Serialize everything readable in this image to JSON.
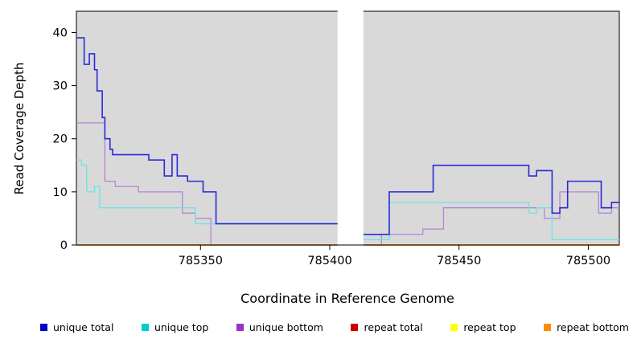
{
  "chart_data": {
    "type": "line",
    "title": "",
    "xlabel": "Coordinate in Reference Genome",
    "ylabel": "Read Coverage Depth",
    "xlim": [
      785302,
      785512
    ],
    "ylim": [
      0,
      44
    ],
    "x_ticks": [
      785350,
      785400,
      785450,
      785500
    ],
    "y_ticks": [
      0,
      10,
      20,
      30,
      40
    ],
    "grid": false,
    "legend_position": "bottom",
    "plot_bg": "#d9d9d9",
    "gap_region": [
      785403,
      785413
    ],
    "series": [
      {
        "name": "repeat total",
        "color": "#cd0000",
        "width": 1.2,
        "step": true,
        "segments": [
          [
            [
              785302,
              0
            ],
            [
              785403,
              0
            ]
          ],
          [
            [
              785413,
              0
            ],
            [
              785512,
              0
            ]
          ]
        ]
      },
      {
        "name": "repeat top",
        "color": "#ffff00",
        "width": 1.2,
        "step": true,
        "segments": [
          [
            [
              785302,
              0
            ],
            [
              785403,
              0
            ]
          ],
          [
            [
              785413,
              0
            ],
            [
              785512,
              0
            ]
          ]
        ]
      },
      {
        "name": "repeat bottom",
        "color": "#ff8c00",
        "width": 1.4,
        "step": true,
        "segments": [
          [
            [
              785302,
              0
            ],
            [
              785403,
              0
            ]
          ],
          [
            [
              785413,
              0
            ],
            [
              785512,
              0
            ]
          ]
        ]
      },
      {
        "name": "unique bottom",
        "color": "#b284d8",
        "width": 1.3,
        "step": true,
        "segments": [
          [
            [
              785302,
              23
            ],
            [
              785313,
              12
            ],
            [
              785317,
              11
            ],
            [
              785326,
              10
            ],
            [
              785343,
              6
            ],
            [
              785348,
              5
            ],
            [
              785354,
              0
            ],
            [
              785403,
              0
            ]
          ],
          [
            [
              785413,
              0
            ],
            [
              785420,
              2
            ],
            [
              785436,
              3
            ],
            [
              785444,
              7
            ],
            [
              785483,
              5
            ],
            [
              785489,
              10
            ],
            [
              785504,
              6
            ],
            [
              785509,
              7
            ],
            [
              785512,
              7
            ]
          ]
        ]
      },
      {
        "name": "unique top",
        "color": "#6fe3e3",
        "width": 1.3,
        "step": true,
        "segments": [
          [
            [
              785302,
              16
            ],
            [
              785304,
              15
            ],
            [
              785306,
              10
            ],
            [
              785309,
              11
            ],
            [
              785311,
              7
            ],
            [
              785348,
              4
            ],
            [
              785403,
              4
            ]
          ],
          [
            [
              785413,
              1
            ],
            [
              785423,
              8
            ],
            [
              785477,
              6
            ],
            [
              785480,
              7
            ],
            [
              785486,
              1
            ],
            [
              785512,
              1
            ]
          ]
        ]
      },
      {
        "name": "unique total",
        "color": "#2a2ad6",
        "width": 1.6,
        "step": true,
        "segments": [
          [
            [
              785302,
              39
            ],
            [
              785305,
              34
            ],
            [
              785307,
              36
            ],
            [
              785309,
              33
            ],
            [
              785310,
              29
            ],
            [
              785312,
              24
            ],
            [
              785313,
              20
            ],
            [
              785315,
              18
            ],
            [
              785316,
              17
            ],
            [
              785330,
              16
            ],
            [
              785336,
              13
            ],
            [
              785339,
              17
            ],
            [
              785341,
              13
            ],
            [
              785345,
              12
            ],
            [
              785351,
              10
            ],
            [
              785356,
              4
            ],
            [
              785403,
              4
            ]
          ],
          [
            [
              785413,
              2
            ],
            [
              785423,
              10
            ],
            [
              785440,
              15
            ],
            [
              785477,
              13
            ],
            [
              785480,
              14
            ],
            [
              785486,
              6
            ],
            [
              785489,
              7
            ],
            [
              785492,
              12
            ],
            [
              785505,
              7
            ],
            [
              785509,
              8
            ],
            [
              785512,
              8
            ]
          ]
        ]
      }
    ],
    "legend": [
      {
        "label": "unique total",
        "color": "#0000cd"
      },
      {
        "label": "unique top",
        "color": "#00cdcd"
      },
      {
        "label": "unique bottom",
        "color": "#9932cc"
      },
      {
        "label": "repeat total",
        "color": "#cd0000"
      },
      {
        "label": "repeat top",
        "color": "#ffff00"
      },
      {
        "label": "repeat bottom",
        "color": "#ff8c00"
      }
    ]
  }
}
